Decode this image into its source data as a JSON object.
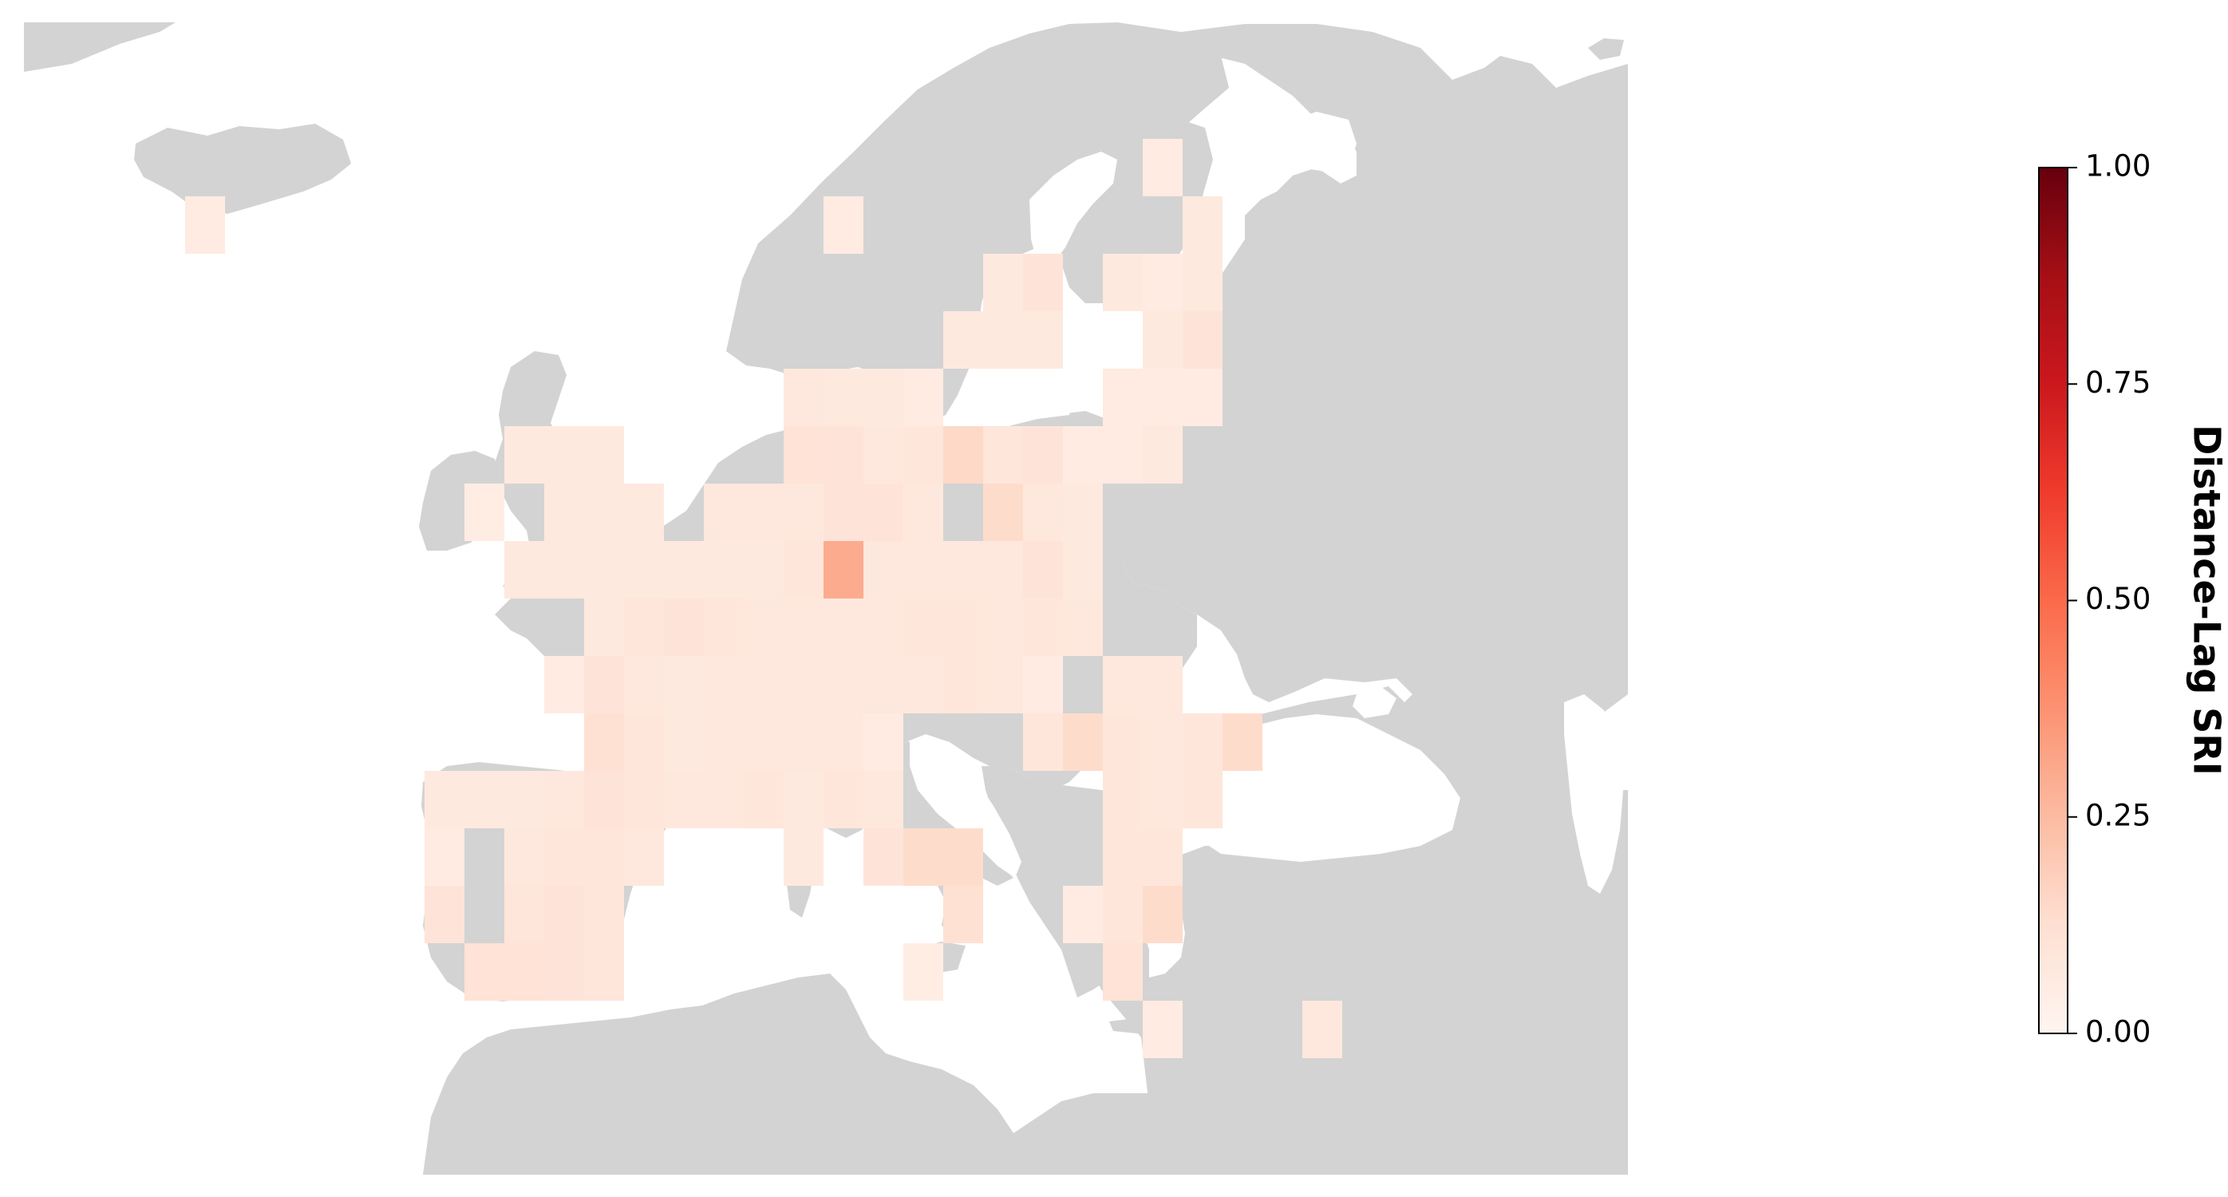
{
  "colorbar": {
    "label": "Distance-Lag SRI",
    "ticks": [
      "0.00",
      "0.25",
      "0.50",
      "0.75",
      "1.00"
    ],
    "range": [
      0,
      1
    ],
    "colormap": "Reds",
    "color_stops": [
      "#fff5f0",
      "#fee0d2",
      "#fcbba1",
      "#fc9272",
      "#fb6a4a",
      "#ef3b2c",
      "#cb181d",
      "#a50f15",
      "#67000d"
    ]
  },
  "map": {
    "land_color": "#d3d3d3",
    "sea_color": "#ffffff",
    "cells": [
      {
        "row": -1,
        "col": 17,
        "v": 0.06
      },
      {
        "row": 0,
        "col": -7,
        "v": 0.06
      },
      {
        "row": 0,
        "col": 9,
        "v": 0.06
      },
      {
        "row": 0,
        "col": 18,
        "v": 0.07
      },
      {
        "row": 1,
        "col": 13,
        "v": 0.07
      },
      {
        "row": 1,
        "col": 14,
        "v": 0.1
      },
      {
        "row": 1,
        "col": 16,
        "v": 0.07
      },
      {
        "row": 1,
        "col": 17,
        "v": 0.06
      },
      {
        "row": 1,
        "col": 18,
        "v": 0.07
      },
      {
        "row": 2,
        "col": 12,
        "v": 0.07
      },
      {
        "row": 2,
        "col": 13,
        "v": 0.07
      },
      {
        "row": 2,
        "col": 14,
        "v": 0.07
      },
      {
        "row": 2,
        "col": 17,
        "v": 0.07
      },
      {
        "row": 2,
        "col": 18,
        "v": 0.1
      },
      {
        "row": 3,
        "col": 8,
        "v": 0.08
      },
      {
        "row": 3,
        "col": 9,
        "v": 0.07
      },
      {
        "row": 3,
        "col": 10,
        "v": 0.07
      },
      {
        "row": 3,
        "col": 11,
        "v": 0.06
      },
      {
        "row": 3,
        "col": 16,
        "v": 0.06
      },
      {
        "row": 3,
        "col": 17,
        "v": 0.06
      },
      {
        "row": 3,
        "col": 18,
        "v": 0.06
      },
      {
        "row": 4,
        "col": 1,
        "v": 0.07
      },
      {
        "row": 4,
        "col": 2,
        "v": 0.07
      },
      {
        "row": 4,
        "col": 3,
        "v": 0.07
      },
      {
        "row": 4,
        "col": 8,
        "v": 0.11
      },
      {
        "row": 4,
        "col": 9,
        "v": 0.1
      },
      {
        "row": 4,
        "col": 10,
        "v": 0.08
      },
      {
        "row": 4,
        "col": 11,
        "v": 0.09
      },
      {
        "row": 4,
        "col": 12,
        "v": 0.15
      },
      {
        "row": 4,
        "col": 13,
        "v": 0.09
      },
      {
        "row": 4,
        "col": 14,
        "v": 0.1
      },
      {
        "row": 4,
        "col": 15,
        "v": 0.06
      },
      {
        "row": 4,
        "col": 16,
        "v": 0.06
      },
      {
        "row": 4,
        "col": 17,
        "v": 0.07
      },
      {
        "row": 5,
        "col": 0,
        "v": 0.05
      },
      {
        "row": 5,
        "col": 2,
        "v": 0.07
      },
      {
        "row": 5,
        "col": 3,
        "v": 0.07
      },
      {
        "row": 5,
        "col": 4,
        "v": 0.07
      },
      {
        "row": 5,
        "col": 6,
        "v": 0.08
      },
      {
        "row": 5,
        "col": 7,
        "v": 0.08
      },
      {
        "row": 5,
        "col": 8,
        "v": 0.08
      },
      {
        "row": 5,
        "col": 9,
        "v": 0.1
      },
      {
        "row": 5,
        "col": 10,
        "v": 0.1
      },
      {
        "row": 5,
        "col": 11,
        "v": 0.08
      },
      {
        "row": 5,
        "col": 13,
        "v": 0.14
      },
      {
        "row": 5,
        "col": 14,
        "v": 0.08
      },
      {
        "row": 5,
        "col": 15,
        "v": 0.07
      },
      {
        "row": 6,
        "col": 1,
        "v": 0.07
      },
      {
        "row": 6,
        "col": 2,
        "v": 0.07
      },
      {
        "row": 6,
        "col": 3,
        "v": 0.07
      },
      {
        "row": 6,
        "col": 4,
        "v": 0.07
      },
      {
        "row": 6,
        "col": 5,
        "v": 0.07
      },
      {
        "row": 6,
        "col": 6,
        "v": 0.07
      },
      {
        "row": 6,
        "col": 7,
        "v": 0.07
      },
      {
        "row": 6,
        "col": 8,
        "v": 0.09
      },
      {
        "row": 6,
        "col": 9,
        "v": 0.3
      },
      {
        "row": 6,
        "col": 10,
        "v": 0.08
      },
      {
        "row": 6,
        "col": 11,
        "v": 0.08
      },
      {
        "row": 6,
        "col": 12,
        "v": 0.08
      },
      {
        "row": 6,
        "col": 13,
        "v": 0.08
      },
      {
        "row": 6,
        "col": 14,
        "v": 0.1
      },
      {
        "row": 6,
        "col": 15,
        "v": 0.07
      },
      {
        "row": 7,
        "col": 3,
        "v": 0.07
      },
      {
        "row": 7,
        "col": 4,
        "v": 0.09
      },
      {
        "row": 7,
        "col": 5,
        "v": 0.1
      },
      {
        "row": 7,
        "col": 6,
        "v": 0.09
      },
      {
        "row": 7,
        "col": 7,
        "v": 0.08
      },
      {
        "row": 7,
        "col": 8,
        "v": 0.08
      },
      {
        "row": 7,
        "col": 9,
        "v": 0.08
      },
      {
        "row": 7,
        "col": 10,
        "v": 0.08
      },
      {
        "row": 7,
        "col": 11,
        "v": 0.09
      },
      {
        "row": 7,
        "col": 12,
        "v": 0.09
      },
      {
        "row": 7,
        "col": 13,
        "v": 0.08
      },
      {
        "row": 7,
        "col": 14,
        "v": 0.09
      },
      {
        "row": 7,
        "col": 15,
        "v": 0.08
      },
      {
        "row": 8,
        "col": 2,
        "v": 0.06
      },
      {
        "row": 8,
        "col": 3,
        "v": 0.1
      },
      {
        "row": 8,
        "col": 4,
        "v": 0.08
      },
      {
        "row": 8,
        "col": 5,
        "v": 0.07
      },
      {
        "row": 8,
        "col": 6,
        "v": 0.08
      },
      {
        "row": 8,
        "col": 7,
        "v": 0.08
      },
      {
        "row": 8,
        "col": 8,
        "v": 0.08
      },
      {
        "row": 8,
        "col": 9,
        "v": 0.08
      },
      {
        "row": 8,
        "col": 10,
        "v": 0.08
      },
      {
        "row": 8,
        "col": 11,
        "v": 0.08
      },
      {
        "row": 8,
        "col": 12,
        "v": 0.09
      },
      {
        "row": 8,
        "col": 13,
        "v": 0.08
      },
      {
        "row": 8,
        "col": 14,
        "v": 0.06
      },
      {
        "row": 8,
        "col": 16,
        "v": 0.08
      },
      {
        "row": 8,
        "col": 17,
        "v": 0.08
      },
      {
        "row": 9,
        "col": 3,
        "v": 0.12
      },
      {
        "row": 9,
        "col": 4,
        "v": 0.09
      },
      {
        "row": 9,
        "col": 5,
        "v": 0.07
      },
      {
        "row": 9,
        "col": 6,
        "v": 0.08
      },
      {
        "row": 9,
        "col": 7,
        "v": 0.08
      },
      {
        "row": 9,
        "col": 8,
        "v": 0.08
      },
      {
        "row": 9,
        "col": 9,
        "v": 0.08
      },
      {
        "row": 9,
        "col": 10,
        "v": 0.06
      },
      {
        "row": 9,
        "col": 14,
        "v": 0.09
      },
      {
        "row": 9,
        "col": 15,
        "v": 0.14
      },
      {
        "row": 9,
        "col": 16,
        "v": 0.09
      },
      {
        "row": 9,
        "col": 17,
        "v": 0.08
      },
      {
        "row": 9,
        "col": 18,
        "v": 0.09
      },
      {
        "row": 9,
        "col": 19,
        "v": 0.14
      },
      {
        "row": 10,
        "col": -1,
        "v": 0.07
      },
      {
        "row": 10,
        "col": 0,
        "v": 0.07
      },
      {
        "row": 10,
        "col": 1,
        "v": 0.07
      },
      {
        "row": 10,
        "col": 2,
        "v": 0.08
      },
      {
        "row": 10,
        "col": 3,
        "v": 0.1
      },
      {
        "row": 10,
        "col": 4,
        "v": 0.09
      },
      {
        "row": 10,
        "col": 5,
        "v": 0.08
      },
      {
        "row": 10,
        "col": 6,
        "v": 0.08
      },
      {
        "row": 10,
        "col": 7,
        "v": 0.09
      },
      {
        "row": 10,
        "col": 8,
        "v": 0.07
      },
      {
        "row": 10,
        "col": 9,
        "v": 0.09
      },
      {
        "row": 10,
        "col": 10,
        "v": 0.08
      },
      {
        "row": 10,
        "col": 16,
        "v": 0.09
      },
      {
        "row": 10,
        "col": 17,
        "v": 0.08
      },
      {
        "row": 10,
        "col": 18,
        "v": 0.09
      },
      {
        "row": 11,
        "col": -1,
        "v": 0.06
      },
      {
        "row": 11,
        "col": 1,
        "v": 0.08
      },
      {
        "row": 11,
        "col": 2,
        "v": 0.09
      },
      {
        "row": 11,
        "col": 3,
        "v": 0.09
      },
      {
        "row": 11,
        "col": 4,
        "v": 0.08
      },
      {
        "row": 11,
        "col": 8,
        "v": 0.07
      },
      {
        "row": 11,
        "col": 10,
        "v": 0.1
      },
      {
        "row": 11,
        "col": 11,
        "v": 0.14
      },
      {
        "row": 11,
        "col": 12,
        "v": 0.14
      },
      {
        "row": 11,
        "col": 16,
        "v": 0.09
      },
      {
        "row": 11,
        "col": 17,
        "v": 0.09
      },
      {
        "row": 12,
        "col": -1,
        "v": 0.1
      },
      {
        "row": 12,
        "col": 1,
        "v": 0.09
      },
      {
        "row": 12,
        "col": 2,
        "v": 0.1
      },
      {
        "row": 12,
        "col": 3,
        "v": 0.09
      },
      {
        "row": 12,
        "col": 12,
        "v": 0.12
      },
      {
        "row": 12,
        "col": 15,
        "v": 0.06
      },
      {
        "row": 12,
        "col": 16,
        "v": 0.09
      },
      {
        "row": 12,
        "col": 17,
        "v": 0.14
      },
      {
        "row": 13,
        "col": 0,
        "v": 0.11
      },
      {
        "row": 13,
        "col": 1,
        "v": 0.11
      },
      {
        "row": 13,
        "col": 2,
        "v": 0.1
      },
      {
        "row": 13,
        "col": 3,
        "v": 0.09
      },
      {
        "row": 13,
        "col": 11,
        "v": 0.05
      },
      {
        "row": 13,
        "col": 16,
        "v": 0.11
      },
      {
        "row": 14,
        "col": 17,
        "v": 0.06
      },
      {
        "row": 14,
        "col": 21,
        "v": 0.08
      }
    ]
  }
}
